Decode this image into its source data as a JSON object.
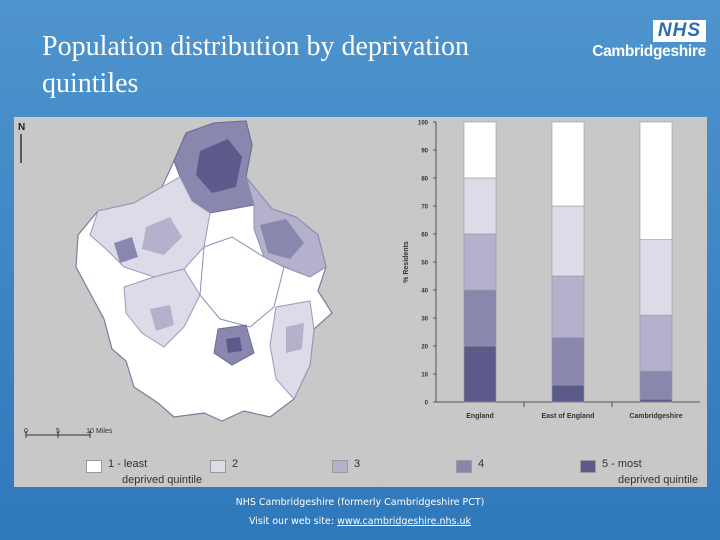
{
  "slide": {
    "title": "Population distribution by deprivation quintiles",
    "logo": {
      "badge": "NHS",
      "org": "Cambridgeshire"
    },
    "footer": {
      "line1": "NHS Cambridgeshire (formerly Cambridgeshire PCT)",
      "line2_prefix": "Visit our web site:",
      "line2_link": "www.cambridgeshire.nhs.uk"
    }
  },
  "map": {
    "north_label": "N",
    "scale_ticks": [
      "0",
      "5",
      "10"
    ],
    "scale_unit": "Miles"
  },
  "legend": {
    "items": [
      {
        "label": "1 - least",
        "color": "#ffffff"
      },
      {
        "label": "2",
        "color": "#dcdbe8"
      },
      {
        "label": "3",
        "color": "#b3b1cc"
      },
      {
        "label": "4",
        "color": "#8987ae"
      },
      {
        "label": "5 - most",
        "color": "#5c5a8a"
      }
    ],
    "left_sub": "deprived quintile",
    "right_sub": "deprived quintile"
  },
  "chart_data": {
    "type": "bar",
    "stacked": true,
    "categories": [
      "England",
      "East of England",
      "Cambridgeshire"
    ],
    "ylabel": "% Residents",
    "ylim": [
      0,
      100
    ],
    "yticks": [
      0,
      10,
      20,
      30,
      40,
      50,
      60,
      70,
      80,
      90,
      100
    ],
    "series": [
      {
        "name": "5 - most",
        "color": "#5c5a8a",
        "values": [
          20,
          6,
          1
        ]
      },
      {
        "name": "4",
        "color": "#8987ae",
        "values": [
          20,
          17,
          10
        ]
      },
      {
        "name": "3",
        "color": "#b3b1cc",
        "values": [
          20,
          22,
          20
        ]
      },
      {
        "name": "2",
        "color": "#dcdbe8",
        "values": [
          20,
          25,
          27
        ]
      },
      {
        "name": "1 - least",
        "color": "#ffffff",
        "values": [
          20,
          30,
          42
        ]
      }
    ]
  }
}
